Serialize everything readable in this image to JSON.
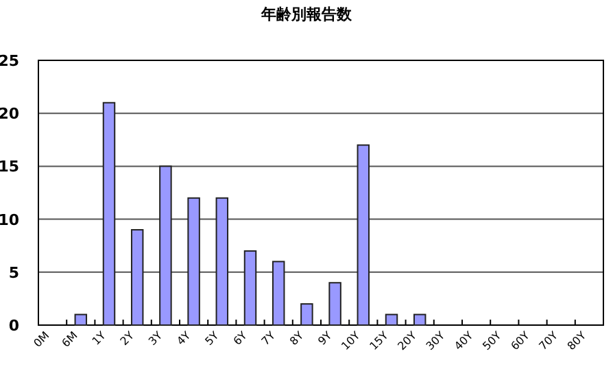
{
  "chart_data": {
    "type": "bar",
    "title": "年齢別報告数",
    "categories": [
      "0M",
      "6M",
      "1Y",
      "2Y",
      "3Y",
      "4Y",
      "5Y",
      "6Y",
      "7Y",
      "8Y",
      "9Y",
      "10Y",
      "15Y",
      "20Y",
      "30Y",
      "40Y",
      "50Y",
      "60Y",
      "70Y",
      "80Y"
    ],
    "values": [
      0,
      1,
      21,
      9,
      15,
      12,
      12,
      7,
      6,
      2,
      4,
      17,
      1,
      1,
      0,
      0,
      0,
      0,
      0,
      0
    ],
    "color": "#9999ff",
    "ylim": [
      0,
      25
    ],
    "yticks": [
      0,
      5,
      10,
      15,
      20,
      25
    ],
    "grid": "y"
  }
}
